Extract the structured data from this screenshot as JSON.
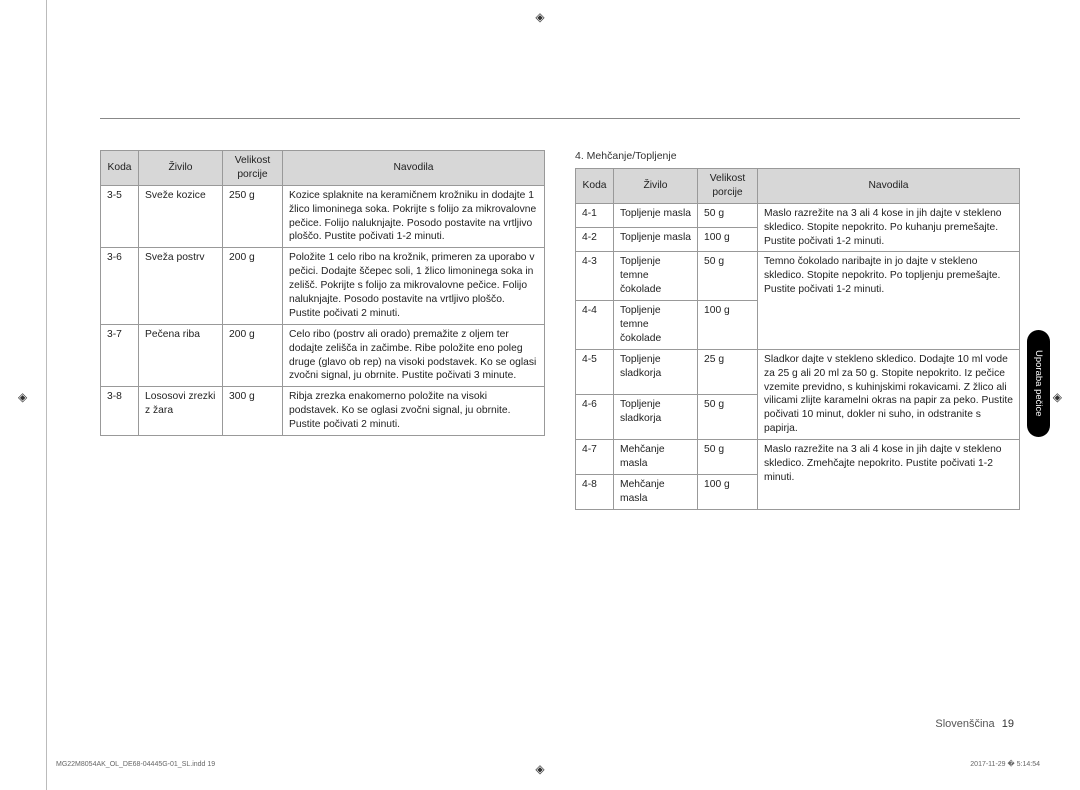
{
  "table1": {
    "headers": {
      "code": "Koda",
      "food": "Živilo",
      "size": "Velikost porcije",
      "instr": "Navodila"
    },
    "rows": [
      {
        "code": "3-5",
        "food": "Sveže kozice",
        "size": "250 g",
        "instr": "Kozice splaknite na keramičnem krožniku in dodajte 1 žlico limoninega soka. Pokrijte s folijo za mikrovalovne pečice. Folijo naluknjajte. Posodo postavite na vrtljivo ploščo. Pustite počivati 1-2 minuti."
      },
      {
        "code": "3-6",
        "food": "Sveža postrv",
        "size": "200 g",
        "instr": "Položite 1 celo ribo na krožnik, primeren za uporabo v pečici. Dodajte ščepec soli, 1 žlico limoninega soka in zelišč. Pokrijte s folijo za mikrovalovne pečice. Folijo naluknjajte. Posodo postavite na vrtljivo ploščo. Pustite počivati 2 minuti."
      },
      {
        "code": "3-7",
        "food": "Pečena riba",
        "size": "200 g",
        "instr": "Celo ribo (postrv ali orado) premažite z oljem ter dodajte zelišča in začimbe. Ribe položite eno poleg druge (glavo ob rep) na visoki podstavek. Ko se oglasi zvočni signal, ju obrnite. Pustite počivati 3 minute."
      },
      {
        "code": "3-8",
        "food": "Lososovi zrezki z žara",
        "size": "300 g",
        "instr": "Ribja zrezka enakomerno položite na visoki podstavek. Ko se oglasi zvočni signal, ju obrnite. Pustite počivati 2 minuti."
      }
    ]
  },
  "section2_title": "4. Mehčanje/Topljenje",
  "table2": {
    "headers": {
      "code": "Koda",
      "food": "Živilo",
      "size": "Velikost porcije",
      "instr": "Navodila"
    },
    "groups": [
      {
        "rows": [
          {
            "code": "4-1",
            "food": "Topljenje masla",
            "size": "50 g"
          },
          {
            "code": "4-2",
            "food": "Topljenje masla",
            "size": "100 g"
          }
        ],
        "instr": "Maslo razrežite na 3 ali 4 kose in jih dajte v stekleno skledico. Stopite nepokrito. Po kuhanju premešajte. Pustite počivati 1-2 minuti."
      },
      {
        "rows": [
          {
            "code": "4-3",
            "food": "Topljenje temne čokolade",
            "size": "50 g"
          },
          {
            "code": "4-4",
            "food": "Topljenje temne čokolade",
            "size": "100 g"
          }
        ],
        "instr": "Temno čokolado naribajte in jo dajte v stekleno skledico. Stopite nepokrito. Po topljenju premešajte. Pustite počivati 1-2 minuti."
      },
      {
        "rows": [
          {
            "code": "4-5",
            "food": "Topljenje sladkorja",
            "size": "25 g"
          },
          {
            "code": "4-6",
            "food": "Topljenje sladkorja",
            "size": "50 g"
          }
        ],
        "instr": "Sladkor dajte v stekleno skledico. Dodajte 10 ml vode za 25 g ali 20 ml za 50 g. Stopite nepokrito. Iz pečice vzemite previdno, s kuhinjskimi rokavicami. Z žlico ali vilicami zlijte karamelni okras na papir za peko. Pustite počivati 10 minut, dokler ni suho, in odstranite s papirja."
      },
      {
        "rows": [
          {
            "code": "4-7",
            "food": "Mehčanje masla",
            "size": "50 g"
          },
          {
            "code": "4-8",
            "food": "Mehčanje masla",
            "size": "100 g"
          }
        ],
        "instr": "Maslo razrežite na 3 ali 4 kose in jih dajte v stekleno skledico. Zmehčajte nepokrito. Pustite počivati 1-2 minuti."
      }
    ]
  },
  "sidetab": "Uporaba pečice",
  "footer": {
    "lang": "Slovenščina",
    "page": "19"
  },
  "tiny_left": "MG22M8054AK_OL_DE68-04445G-01_SL.indd   19",
  "tiny_right": "2017-11-29   � 5:14:54"
}
